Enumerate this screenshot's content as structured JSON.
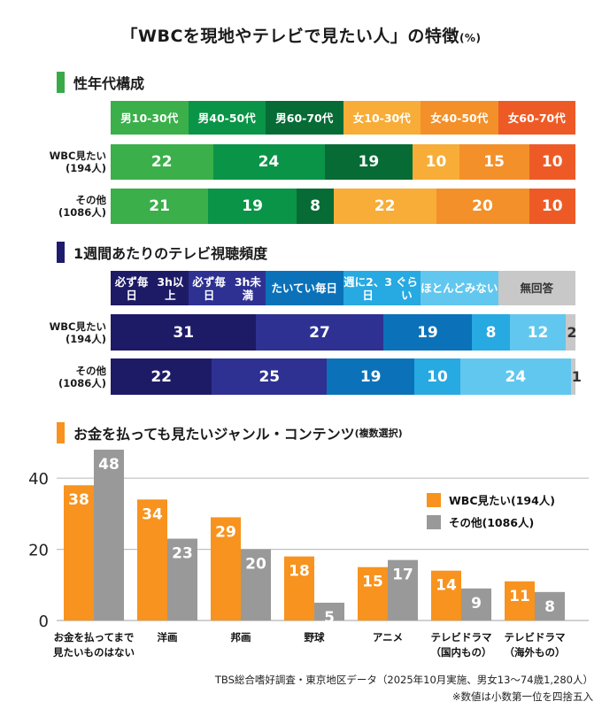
{
  "title": {
    "main": "「WBCを現地やテレビで見たい人」の特徴",
    "unit": "(%)"
  },
  "sections": {
    "demographics": {
      "title": "性年代構成",
      "marker_color": "#3aaa49"
    },
    "tv_frequency": {
      "title": "1週間あたりのテレビ視聴頻度",
      "marker_color": "#1f1c6b"
    },
    "genres": {
      "title": "お金を払っても見たいジャンル・コンテンツ",
      "title_note": "(複数選択)",
      "marker_color": "#f7931e"
    }
  },
  "chart_data": [
    {
      "type": "bar",
      "orientation": "horizontal-stacked",
      "title": "性年代構成",
      "unit": "%",
      "categories": [
        "WBC見たい\n(194人)",
        "その他\n(1086人)"
      ],
      "category_lines": [
        [
          "WBC見たい",
          "(194人)"
        ],
        [
          "その他",
          "(1086人)"
        ]
      ],
      "series": [
        {
          "name": "男10-30代",
          "color": "#3aaf4a",
          "values": [
            22,
            21
          ]
        },
        {
          "name": "男40-50代",
          "color": "#0a9447",
          "values": [
            24,
            19
          ]
        },
        {
          "name": "男60-70代",
          "color": "#066b35",
          "values": [
            19,
            8
          ]
        },
        {
          "name": "女10-30代",
          "color": "#f7ad37",
          "values": [
            10,
            22
          ]
        },
        {
          "name": "女40-50代",
          "color": "#f39029",
          "values": [
            15,
            20
          ]
        },
        {
          "name": "女60-70代",
          "color": "#ee5a26",
          "values": [
            10,
            10
          ]
        }
      ]
    },
    {
      "type": "bar",
      "orientation": "horizontal-stacked",
      "title": "1週間あたりのテレビ視聴頻度",
      "unit": "%",
      "categories": [
        "WBC見たい\n(194人)",
        "その他\n(1086人)"
      ],
      "category_lines": [
        [
          "WBC見たい",
          "(194人)"
        ],
        [
          "その他",
          "(1086人)"
        ]
      ],
      "series": [
        {
          "name": "必ず毎日 3h以上",
          "lines": [
            "必ず毎日",
            "3h以上"
          ],
          "color": "#1e1b66",
          "text_color": "#ffffff",
          "values": [
            31,
            22
          ]
        },
        {
          "name": "必ず毎日 3h未満",
          "lines": [
            "必ず毎日",
            "3h未満"
          ],
          "color": "#2e3192",
          "text_color": "#ffffff",
          "values": [
            27,
            25
          ]
        },
        {
          "name": "たいてい毎日",
          "lines": [
            "たいてい毎日"
          ],
          "color": "#0b72b9",
          "text_color": "#ffffff",
          "values": [
            19,
            19
          ]
        },
        {
          "name": "週に2、3日 ぐらい",
          "lines": [
            "週に2、3日",
            "ぐらい"
          ],
          "color": "#27a9e1",
          "text_color": "#ffffff",
          "values": [
            8,
            10
          ]
        },
        {
          "name": "ほとんど みない",
          "lines": [
            "ほとんど",
            "みない"
          ],
          "color": "#62c7ee",
          "text_color": "#ffffff",
          "values": [
            12,
            24
          ]
        },
        {
          "name": "無回答",
          "lines": [
            "無回答"
          ],
          "color": "#c8c8c8",
          "text_color": "#333333",
          "values": [
            2,
            1
          ]
        }
      ]
    },
    {
      "type": "bar",
      "orientation": "vertical-grouped",
      "title": "お金を払っても見たいジャンル・コンテンツ(複数選択)",
      "xlabel": "",
      "ylabel": "",
      "ylim": [
        0,
        48
      ],
      "yticks": [
        0,
        20,
        40
      ],
      "grid": true,
      "legend": "upper-right",
      "categories": [
        "お金を払ってまで見たいものはない",
        "洋画",
        "邦画",
        "野球",
        "アニメ",
        "テレビドラマ(国内もの)",
        "テレビドラマ(海外もの)"
      ],
      "category_lines": [
        [
          "お金を払ってまで",
          "見たいものはない"
        ],
        [
          "洋画"
        ],
        [
          "邦画"
        ],
        [
          "野球"
        ],
        [
          "アニメ"
        ],
        [
          "テレビドラマ",
          "（国内もの）"
        ],
        [
          "テレビドラマ",
          "（海外もの）"
        ]
      ],
      "series": [
        {
          "name": "WBC見たい(194人)",
          "color": "#f7931e",
          "values": [
            38,
            34,
            29,
            18,
            15,
            14,
            11
          ]
        },
        {
          "name": "その他(1086人)",
          "color": "#999999",
          "values": [
            48,
            23,
            20,
            5,
            17,
            9,
            8
          ]
        }
      ]
    }
  ],
  "footer": {
    "source": "TBS総合嗜好調査・東京地区データ（2025年10月実施、男女13〜74歳1,280人）",
    "note": "※数値は小数第一位を四捨五入"
  }
}
